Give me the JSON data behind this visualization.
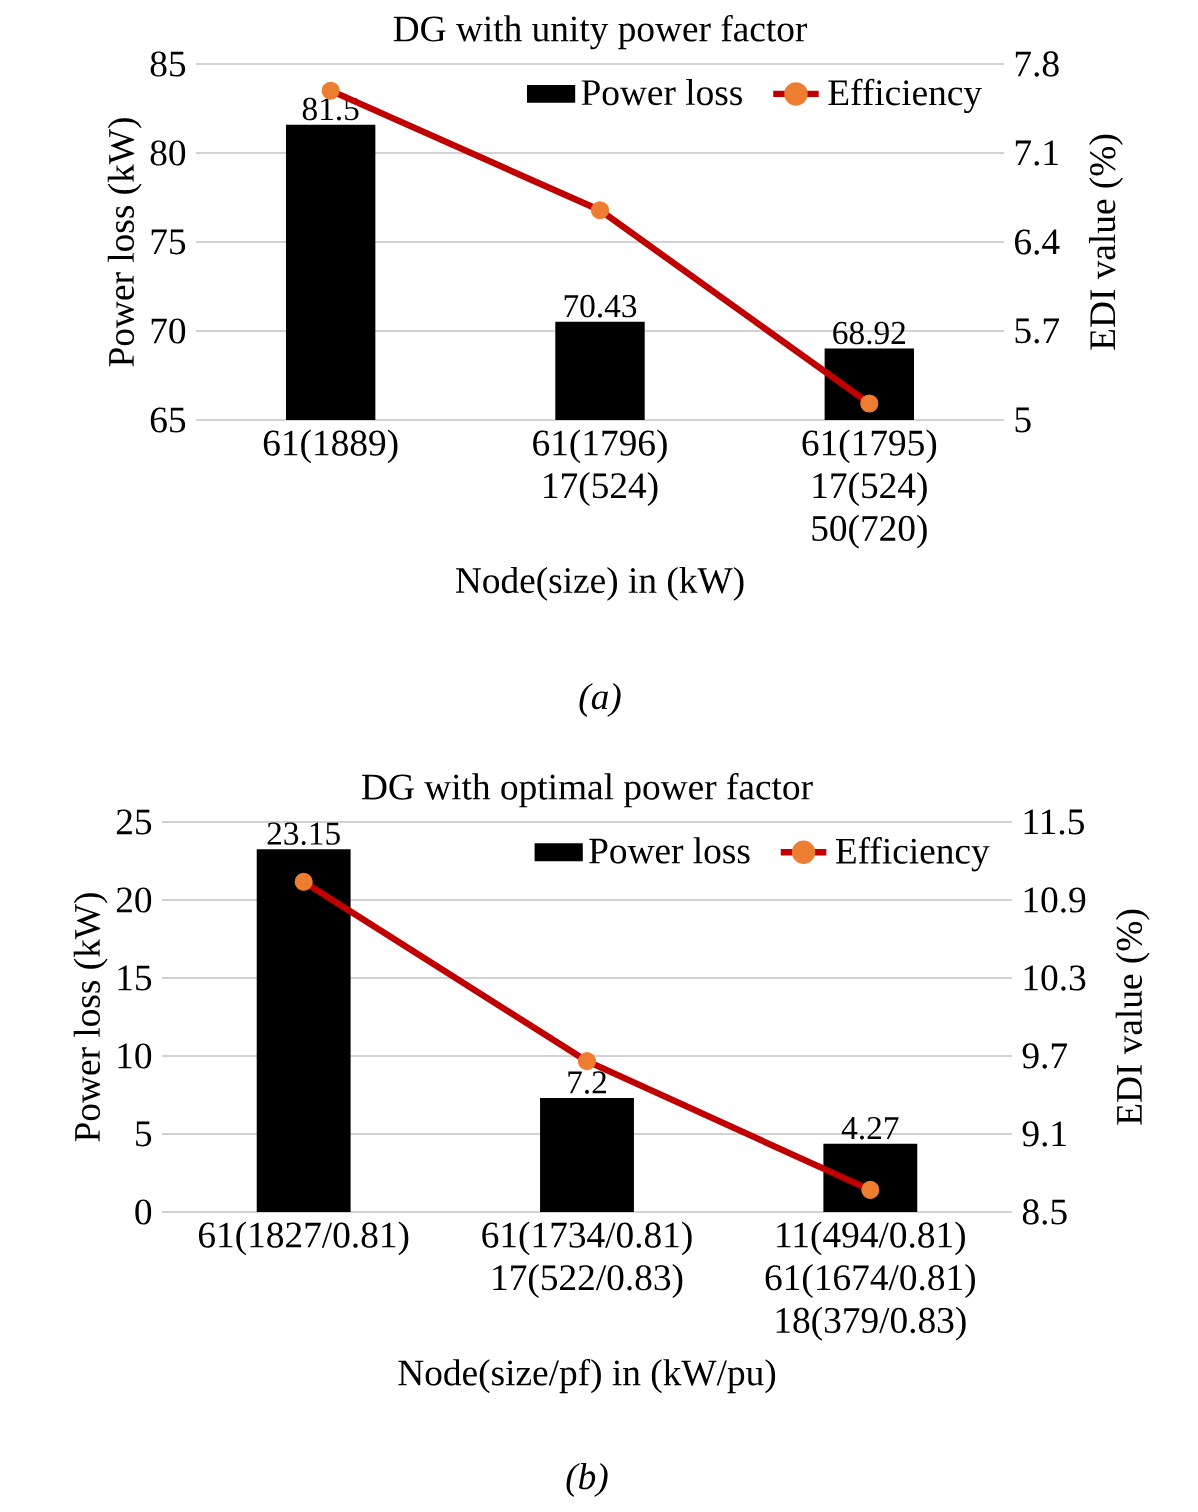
{
  "chart_data": [
    {
      "type": "bar",
      "title": "DG with unity power factor",
      "xlabel": "Node(size) in (kW)",
      "ylabel": "Power loss (kW)",
      "y2label": "EDI value (%)",
      "categories": [
        "61(1889)",
        "61(1796) 17(524)",
        "61(1795) 17(524) 50(720)"
      ],
      "series": [
        {
          "name": "Power loss",
          "type": "bar",
          "color": "#000000",
          "values": [
            81.5,
            70.43,
            68.92
          ],
          "value_labels": [
            "81.5",
            "70.43",
            "68.92"
          ]
        },
        {
          "name": "Efficiency",
          "type": "line",
          "axis": "y2",
          "color": "#C00000",
          "colors": [
            "#ED7D31",
            "#ED7D31",
            "#ED7D31"
          ],
          "marker": "circle",
          "line_style": "solid",
          "values": [
            7.59,
            6.65,
            5.13
          ]
        }
      ],
      "ylim": [
        65,
        85
      ],
      "yticks": [
        65,
        70,
        75,
        80,
        85
      ],
      "y2lim": [
        5,
        7.8
      ],
      "y2ticks": [
        5,
        5.7,
        6.4,
        7.1,
        7.8
      ],
      "grid": "y",
      "legend": "top right",
      "annotations": [
        "(a)"
      ]
    },
    {
      "type": "bar",
      "title": "DG with optimal power factor",
      "xlabel": "Node(size/pf) in (kW/pu)",
      "ylabel": "Power loss (kW)",
      "y2label": "EDI value (%)",
      "categories": [
        "61(1827/0.81)",
        "61(1734/0.81) 17(522/0.83)",
        "11(494/0.81) 61(1674/0.81) 18(379/0.83)"
      ],
      "series": [
        {
          "name": "Power loss",
          "type": "bar",
          "color": "#000000",
          "values": [
            23.15,
            7.2,
            4.27
          ],
          "value_labels": [
            "23.15",
            "7.2",
            "4.27"
          ]
        },
        {
          "name": "Efficiency",
          "type": "line",
          "axis": "y2",
          "color": "#C00000",
          "colors": [
            "#ED7D31",
            "#ED7D31",
            "#ED7D31"
          ],
          "marker": "circle",
          "line_style": "solid",
          "values": [
            11.04,
            9.66,
            8.67
          ]
        }
      ],
      "ylim": [
        0,
        25
      ],
      "yticks": [
        0,
        5,
        10,
        15,
        20,
        25
      ],
      "y2lim": [
        8.5,
        11.5
      ],
      "y2ticks": [
        8.5,
        9.1,
        9.7,
        10.3,
        10.9,
        11.5
      ],
      "grid": "y",
      "legend": "top right",
      "annotations": [
        "(b)"
      ]
    }
  ]
}
